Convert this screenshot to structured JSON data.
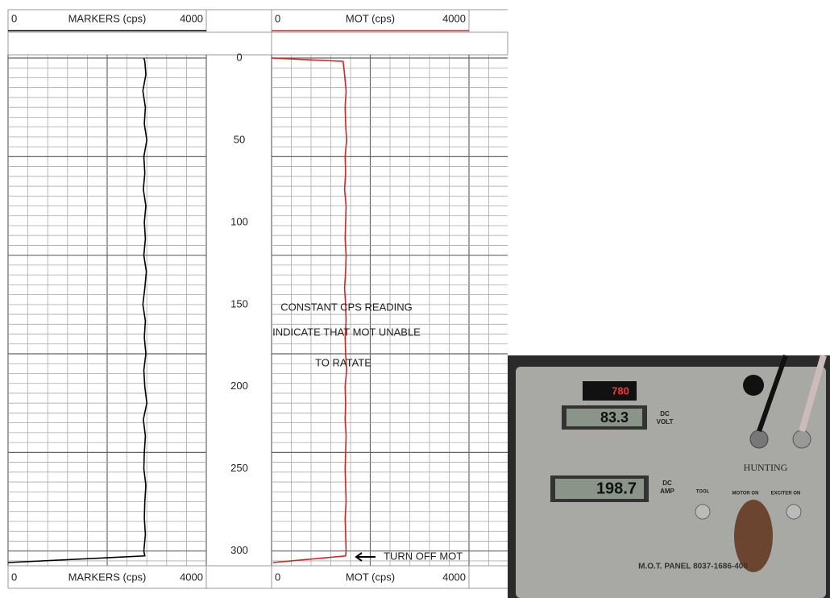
{
  "chart_data": {
    "type": "log",
    "x": [
      0,
      2,
      10,
      20,
      30,
      40,
      50,
      60,
      70,
      80,
      90,
      100,
      110,
      120,
      130,
      140,
      150,
      160,
      170,
      180,
      190,
      200,
      210,
      220,
      230,
      240,
      250,
      260,
      270,
      280,
      290,
      300,
      303,
      307
    ],
    "series": [
      {
        "name": "MARKERS (cps)",
        "color": "#000000",
        "values": [
          2740,
          2760,
          2780,
          2720,
          2770,
          2750,
          2800,
          2740,
          2760,
          2730,
          2780,
          2750,
          2770,
          2740,
          2790,
          2760,
          2720,
          2770,
          2750,
          2780,
          2740,
          2760,
          2800,
          2730,
          2770,
          2750,
          2740,
          2780,
          2760,
          2750,
          2770,
          2740,
          2760,
          0
        ]
      },
      {
        "name": "MOT (cps)",
        "color": "#e02020",
        "values": [
          0,
          1450,
          1480,
          1510,
          1490,
          1500,
          1520,
          1490,
          1500,
          1480,
          1510,
          1500,
          1490,
          1510,
          1500,
          1480,
          1500,
          1510,
          1490,
          1500,
          1520,
          1490,
          1500,
          1490,
          1510,
          1500,
          1490,
          1500,
          1510,
          1490,
          1500,
          1510,
          1500,
          30
        ]
      }
    ],
    "xlim": [
      0,
      4000
    ],
    "xticks": [
      0,
      4000
    ],
    "xgrid_step": 400,
    "xgrid_major_step": 2000,
    "ylim": [
      0,
      308
    ],
    "yticks": [
      0,
      50,
      100,
      150,
      200,
      250,
      300
    ],
    "grid_step": 6,
    "grid_major_step": 60,
    "annotations": [
      "CONSTANT CPS READING",
      "INDICATE THAT MOT UNABLE",
      "TO RATATE",
      "TURN OFF MOT"
    ]
  },
  "photo": {
    "small_display": "780",
    "volt_display": "83.3",
    "volt_label": [
      "DC",
      "VOLT"
    ],
    "amp_display": "198.7",
    "amp_label": [
      "DC",
      "AMP"
    ],
    "brand": "HUNTING",
    "switches": [
      "TOOL",
      "MOTOR ON",
      "EXCITER ON"
    ],
    "panel_label": "M.O.T. PANEL 8037-1686-400"
  }
}
